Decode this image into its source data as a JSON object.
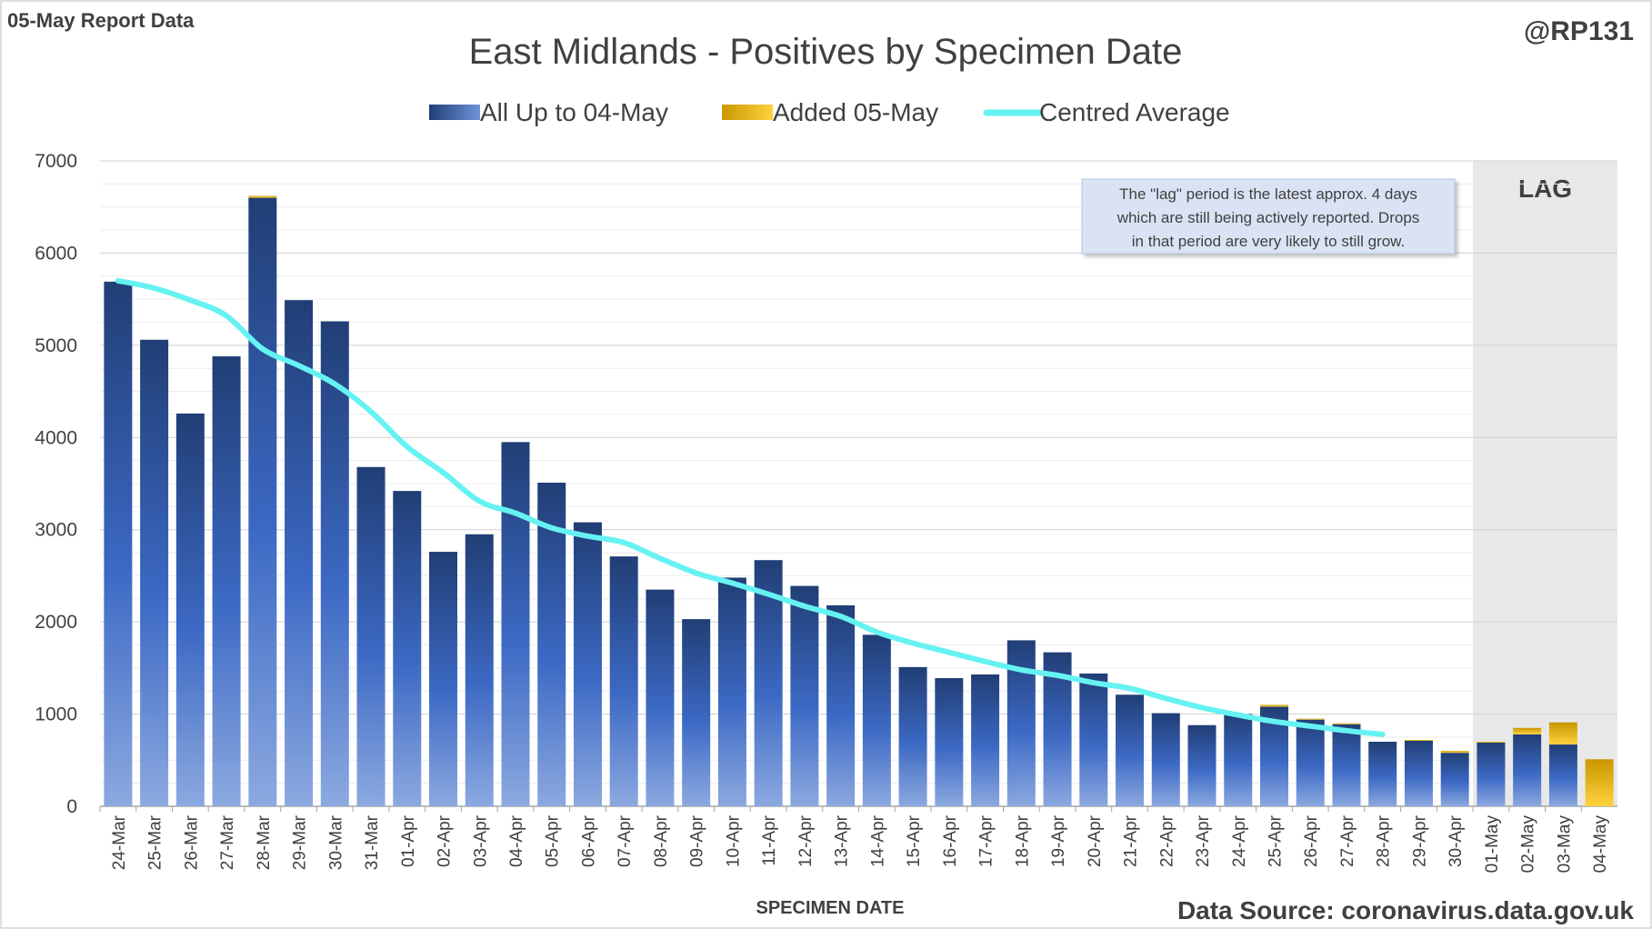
{
  "header": {
    "report_label": "05-May Report Data",
    "handle": "@RP131",
    "source": "Data Source: coronavirus.data.gov.uk"
  },
  "chart_data": {
    "type": "bar",
    "stacked": true,
    "title": "East Midlands - Positives by Specimen Date",
    "xlabel": "SPECIMEN DATE",
    "ylabel": "",
    "ylim": [
      0,
      7000
    ],
    "yticks": [
      0,
      1000,
      2000,
      3000,
      4000,
      5000,
      6000,
      7000
    ],
    "grid": true,
    "legend_position": "top-center",
    "categories": [
      "24-Mar",
      "25-Mar",
      "26-Mar",
      "27-Mar",
      "28-Mar",
      "29-Mar",
      "30-Mar",
      "31-Mar",
      "01-Apr",
      "02-Apr",
      "03-Apr",
      "04-Apr",
      "05-Apr",
      "06-Apr",
      "07-Apr",
      "08-Apr",
      "09-Apr",
      "10-Apr",
      "11-Apr",
      "12-Apr",
      "13-Apr",
      "14-Apr",
      "15-Apr",
      "16-Apr",
      "17-Apr",
      "18-Apr",
      "19-Apr",
      "20-Apr",
      "21-Apr",
      "22-Apr",
      "23-Apr",
      "24-Apr",
      "25-Apr",
      "26-Apr",
      "27-Apr",
      "28-Apr",
      "29-Apr",
      "30-Apr",
      "01-May",
      "02-May",
      "03-May",
      "04-May"
    ],
    "series": [
      {
        "name": "All Up to 04-May",
        "kind": "bar",
        "color": "#2f5496",
        "values": [
          5690,
          5060,
          4260,
          4880,
          6600,
          5490,
          5260,
          3680,
          3420,
          2760,
          2950,
          3950,
          3510,
          3080,
          2710,
          2350,
          2030,
          2480,
          2670,
          2390,
          2180,
          1860,
          1510,
          1390,
          1430,
          1800,
          1670,
          1440,
          1210,
          1010,
          880,
          1000,
          1080,
          940,
          890,
          700,
          710,
          580,
          690,
          780,
          670,
          0
        ]
      },
      {
        "name": "Added 05-May",
        "kind": "bar",
        "color": "#f2b800",
        "values": [
          0,
          0,
          0,
          0,
          20,
          0,
          0,
          0,
          0,
          0,
          0,
          0,
          0,
          0,
          0,
          0,
          0,
          0,
          0,
          0,
          0,
          0,
          0,
          0,
          0,
          0,
          0,
          0,
          0,
          0,
          0,
          0,
          20,
          10,
          10,
          0,
          10,
          20,
          10,
          70,
          240,
          510
        ]
      },
      {
        "name": "Centred Average",
        "kind": "line",
        "color": "#66f2f2",
        "values": [
          5700,
          5620,
          5490,
          5320,
          4960,
          4780,
          4580,
          4280,
          3900,
          3620,
          3310,
          3180,
          3020,
          2930,
          2860,
          2690,
          2530,
          2420,
          2300,
          2170,
          2060,
          1890,
          1770,
          1670,
          1570,
          1480,
          1420,
          1340,
          1280,
          1170,
          1070,
          990,
          920,
          870,
          820,
          780,
          null,
          null,
          null,
          null,
          null,
          null
        ]
      }
    ],
    "lag": {
      "label": "LAG",
      "start_category": "01-May",
      "end_category": "04-May"
    },
    "annotation": {
      "lines": [
        "The \"lag\" period is the latest approx. 4 days",
        "which are still being actively reported.  Drops",
        "in that period are very likely to still grow."
      ]
    },
    "colors": {
      "bar_dark": "#213e75",
      "bar_light": "#8ca9e0",
      "added_dark": "#c99700",
      "added_light": "#ffd23f",
      "avg_line": "#66f2f2",
      "lag_fill": "#e8e8e8",
      "grid": "#d9d9d9",
      "text": "#404040",
      "note_bg": "#dae3f3"
    }
  }
}
